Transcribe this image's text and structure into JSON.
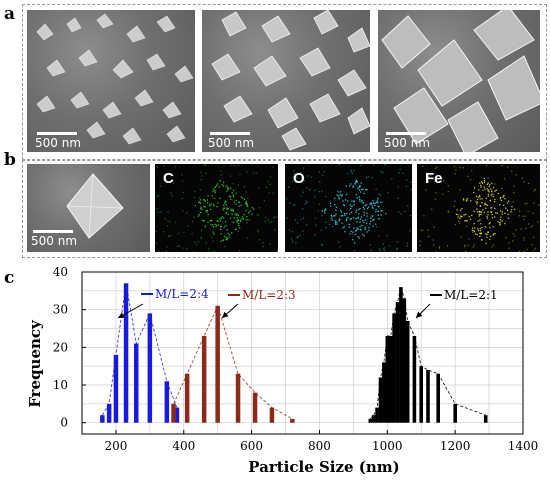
{
  "panels": {
    "a": {
      "letter": "a",
      "images": [
        {
          "scale_label": "500 nm"
        },
        {
          "scale_label": "500 nm"
        },
        {
          "scale_label": "500 nm"
        }
      ]
    },
    "b": {
      "letter": "b",
      "images": [
        {
          "scale_label": "500 nm"
        },
        {
          "element": "C",
          "color": "#2ecc2e"
        },
        {
          "element": "O",
          "color": "#2fd4e8"
        },
        {
          "element": "Fe",
          "color": "#d9d92a"
        }
      ]
    },
    "c": {
      "letter": "c"
    }
  },
  "chart_data": {
    "type": "bar",
    "xlabel": "Particle Size (nm)",
    "ylabel": "Frequency",
    "xlim": [
      100,
      1400
    ],
    "ylim": [
      -3,
      40
    ],
    "xticks": [
      200,
      400,
      600,
      800,
      1000,
      1200,
      1400
    ],
    "yticks": [
      0,
      10,
      20,
      30,
      40
    ],
    "grid": true,
    "series": [
      {
        "name": "M/L=2:4",
        "color": "#1a1adb",
        "x": [
          160,
          180,
          200,
          230,
          260,
          300,
          350,
          380
        ],
        "values": [
          2,
          5,
          18,
          37,
          21,
          29,
          11,
          4
        ]
      },
      {
        "name": "M/L=2:3",
        "color": "#8b2a1a",
        "x": [
          370,
          410,
          460,
          500,
          560,
          610,
          660,
          720
        ],
        "values": [
          5,
          13,
          23,
          31,
          13,
          8,
          4,
          1
        ]
      },
      {
        "name": "M/L=2:1",
        "color": "#000000",
        "x": [
          950,
          960,
          970,
          980,
          990,
          1000,
          1010,
          1020,
          1030,
          1040,
          1050,
          1060,
          1080,
          1100,
          1120,
          1150,
          1200,
          1290
        ],
        "values": [
          1,
          2,
          4,
          12,
          16,
          23,
          23,
          29,
          32,
          36,
          33,
          27,
          23,
          15,
          14,
          13,
          5,
          2
        ]
      }
    ],
    "annotations": [
      {
        "series": 0,
        "text": "M/L=2:4"
      },
      {
        "series": 1,
        "text": "M/L=2:3"
      },
      {
        "series": 2,
        "text": "M/L=2:1"
      }
    ]
  }
}
